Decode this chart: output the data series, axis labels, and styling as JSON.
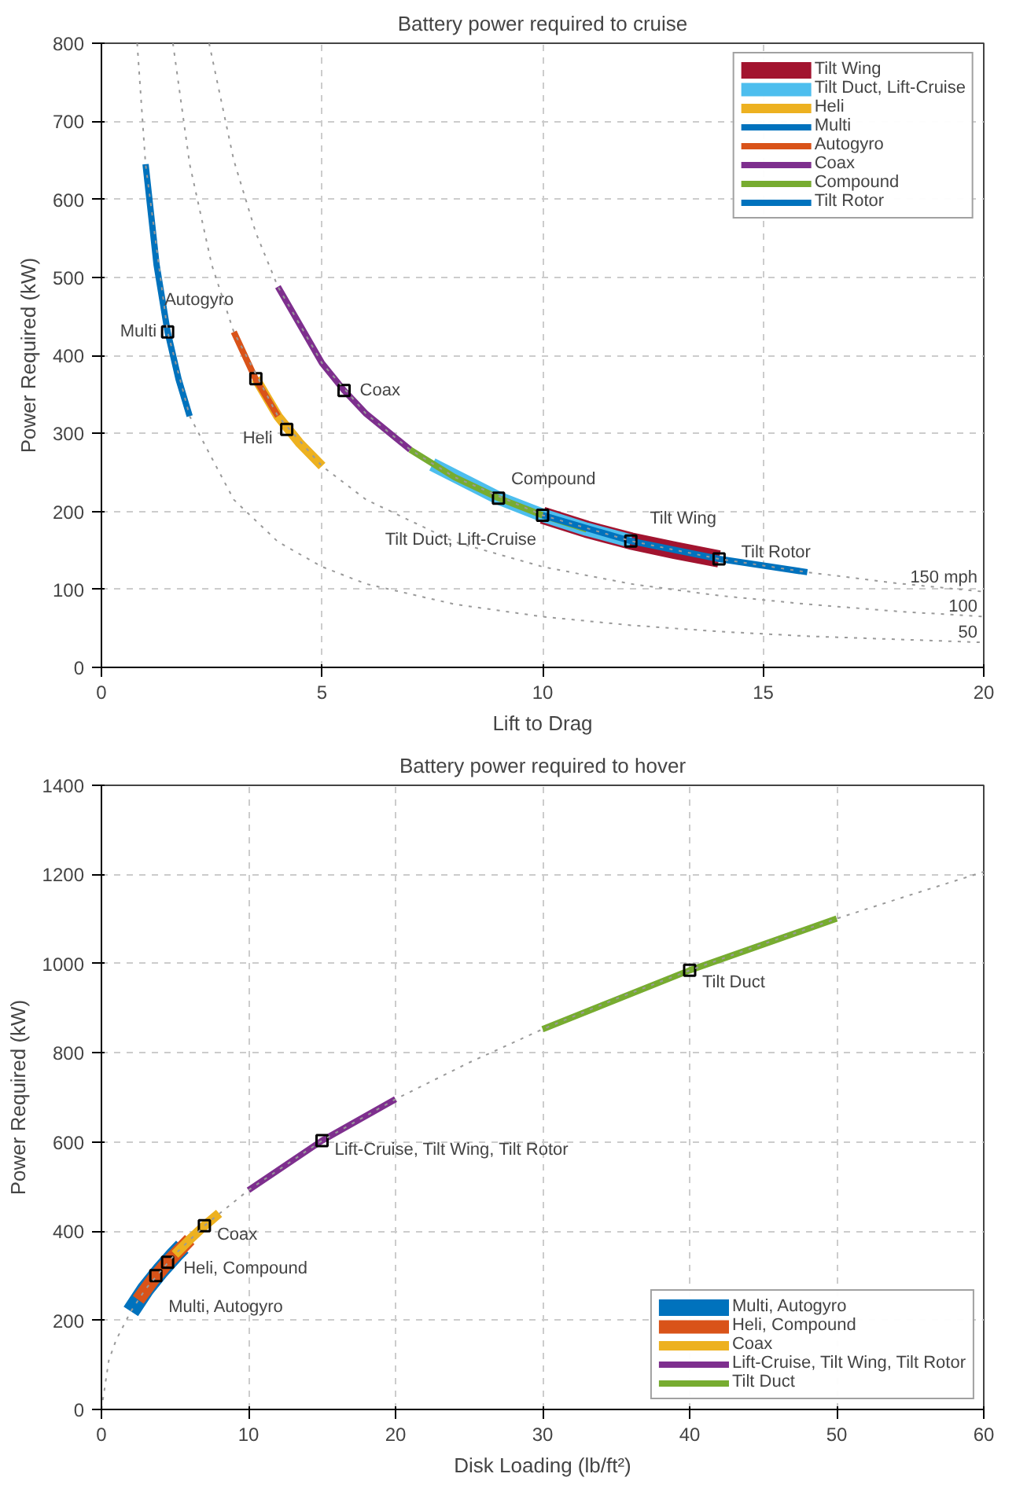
{
  "chart_data": [
    {
      "type": "line",
      "title": "Battery power required to cruise",
      "xlabel": "Lift to Drag",
      "ylabel": "Power Required (kW)",
      "xlim": [
        0,
        20
      ],
      "ylim": [
        0,
        800
      ],
      "xticks": [
        0,
        5,
        10,
        15,
        20
      ],
      "yticks": [
        0,
        100,
        200,
        300,
        400,
        500,
        600,
        700,
        800
      ],
      "grid": true,
      "legend": "top right",
      "series": [
        {
          "name": "150 mph",
          "color": "#9a9a9a",
          "line_style": "dotted",
          "x": [
            2.44,
            3,
            3.5,
            4,
            5,
            6,
            7,
            8,
            10,
            12,
            14,
            16,
            18,
            20
          ],
          "values": [
            800,
            650,
            557,
            488,
            390,
            325,
            279,
            244,
            195,
            162,
            139,
            122,
            108,
            97
          ]
        },
        {
          "name": "100",
          "color": "#9a9a9a",
          "line_style": "dotted",
          "x": [
            1.62,
            2,
            2.5,
            3,
            4,
            5,
            6,
            8,
            10,
            12,
            14,
            16,
            18,
            20
          ],
          "values": [
            800,
            645,
            516,
            430,
            322,
            258,
            215,
            161,
            129,
            107,
            92,
            81,
            72,
            65
          ]
        },
        {
          "name": "50",
          "color": "#9a9a9a",
          "line_style": "dotted",
          "x": [
            0.81,
            1,
            1.5,
            2,
            3,
            4,
            5,
            6,
            8,
            10,
            12,
            14,
            16,
            18,
            20
          ],
          "values": [
            800,
            645,
            430,
            322,
            215,
            161,
            129,
            107,
            81,
            65,
            54,
            46,
            40,
            36,
            32
          ]
        },
        {
          "name": "Tilt Wing",
          "color": "#a2142f",
          "x": [
            10,
            11,
            12,
            13,
            14
          ],
          "values": [
            195,
            177,
            162,
            150,
            139
          ]
        },
        {
          "name": "Tilt Duct, Lift-Cruise",
          "color": "#4dbeee",
          "x": [
            7.5,
            9,
            10,
            11,
            12
          ],
          "values": [
            260,
            217,
            195,
            177,
            162
          ]
        },
        {
          "name": "Heli",
          "color": "#edb120",
          "x": [
            3.5,
            4,
            4.5,
            5
          ],
          "values": [
            370,
            322,
            287,
            258
          ]
        },
        {
          "name": "Multi",
          "color": "#0072bd",
          "x": [
            1,
            1.25,
            1.5,
            1.75,
            2
          ],
          "values": [
            645,
            516,
            430,
            369,
            322
          ]
        },
        {
          "name": "Autogyro",
          "color": "#d95319",
          "x": [
            3,
            3.5,
            4
          ],
          "values": [
            430,
            369,
            322
          ]
        },
        {
          "name": "Coax",
          "color": "#7e2f8e",
          "x": [
            4,
            5,
            5.5,
            6,
            7
          ],
          "values": [
            488,
            390,
            355,
            325,
            279
          ]
        },
        {
          "name": "Compound",
          "color": "#77ac30",
          "x": [
            7,
            8,
            9,
            10,
            11
          ],
          "values": [
            279,
            244,
            217,
            195,
            177
          ]
        },
        {
          "name": "Tilt Rotor",
          "color": "#0072bd",
          "x": [
            10,
            12,
            14,
            16
          ],
          "values": [
            195,
            162,
            139,
            122
          ]
        },
        {
          "type": "scatter",
          "marker": "square",
          "color": "#000000",
          "x": [
            1.5,
            3.5,
            4.2,
            5.5,
            9,
            10,
            12,
            14
          ],
          "values": [
            430,
            370,
            305,
            355,
            217,
            195,
            162,
            139
          ]
        }
      ],
      "annotations": [
        {
          "text": "Autogyro",
          "x": 1.5,
          "y": 430
        },
        {
          "text": "Multi",
          "x": 1.5,
          "y": 430
        },
        {
          "text": "Heli",
          "x": 4.2,
          "y": 305
        },
        {
          "text": "Coax",
          "x": 5.5,
          "y": 355
        },
        {
          "text": "Compound",
          "x": 9,
          "y": 217
        },
        {
          "text": "Tilt Duct, Lift-Cruise",
          "x": 10,
          "y": 195
        },
        {
          "text": "Tilt Wing",
          "x": 12,
          "y": 162
        },
        {
          "text": "Tilt Rotor",
          "x": 14,
          "y": 139
        }
      ]
    },
    {
      "type": "line",
      "title": "Battery power required to hover",
      "xlabel": "Disk Loading (lb/ft²)",
      "ylabel": "Power Required (kW)",
      "xlim": [
        0,
        60
      ],
      "ylim": [
        0,
        1400
      ],
      "xticks": [
        0,
        10,
        20,
        30,
        40,
        50,
        60
      ],
      "yticks": [
        0,
        200,
        400,
        600,
        800,
        1000,
        1200,
        1400
      ],
      "grid": true,
      "legend": "bottom right",
      "series": [
        {
          "color": "#9a9a9a",
          "line_style": "dotted",
          "x": [
            0,
            0.5,
            1,
            2,
            3,
            5,
            7,
            10,
            15,
            20,
            25,
            30,
            35,
            40,
            45,
            50,
            55,
            60
          ],
          "values": [
            0,
            110,
            156,
            220,
            270,
            348,
            412,
            492,
            603,
            696,
            778,
            853,
            921,
            985,
            1044,
            1101,
            1154,
            1206
          ]
        },
        {
          "name": "Multi, Autogyro",
          "color": "#0072bd",
          "x": [
            2,
            3,
            4,
            5,
            5.5
          ],
          "values": [
            220,
            270,
            311,
            348,
            365
          ]
        },
        {
          "name": "Heli, Compound",
          "color": "#d95319",
          "x": [
            2.5,
            3.5,
            4.5,
            6
          ],
          "values": [
            246,
            291,
            330,
            381
          ]
        },
        {
          "name": "Coax",
          "color": "#edb120",
          "x": [
            5,
            6,
            7,
            8
          ],
          "values": [
            348,
            381,
            412,
            440
          ]
        },
        {
          "name": "Lift-Cruise, Tilt Wing, Tilt Rotor",
          "color": "#7e2f8e",
          "x": [
            10,
            15,
            20
          ],
          "values": [
            492,
            603,
            696
          ]
        },
        {
          "name": "Tilt Duct",
          "color": "#77ac30",
          "x": [
            30,
            40,
            50
          ],
          "values": [
            853,
            985,
            1101
          ]
        },
        {
          "type": "scatter",
          "marker": "square",
          "color": "#000000",
          "x": [
            3.7,
            4.5,
            7,
            15,
            40
          ],
          "values": [
            300,
            330,
            412,
            603,
            985
          ]
        }
      ],
      "annotations": [
        {
          "text": "Tilt Duct",
          "x": 40,
          "y": 985
        },
        {
          "text": "Lift-Cruise, Tilt Wing, Tilt Rotor",
          "x": 15,
          "y": 603
        },
        {
          "text": "Coax",
          "x": 7,
          "y": 412
        },
        {
          "text": "Heli, Compound",
          "x": 4.5,
          "y": 330
        },
        {
          "text": "Multi, Autogyro",
          "x": 3.7,
          "y": 300
        }
      ]
    }
  ]
}
